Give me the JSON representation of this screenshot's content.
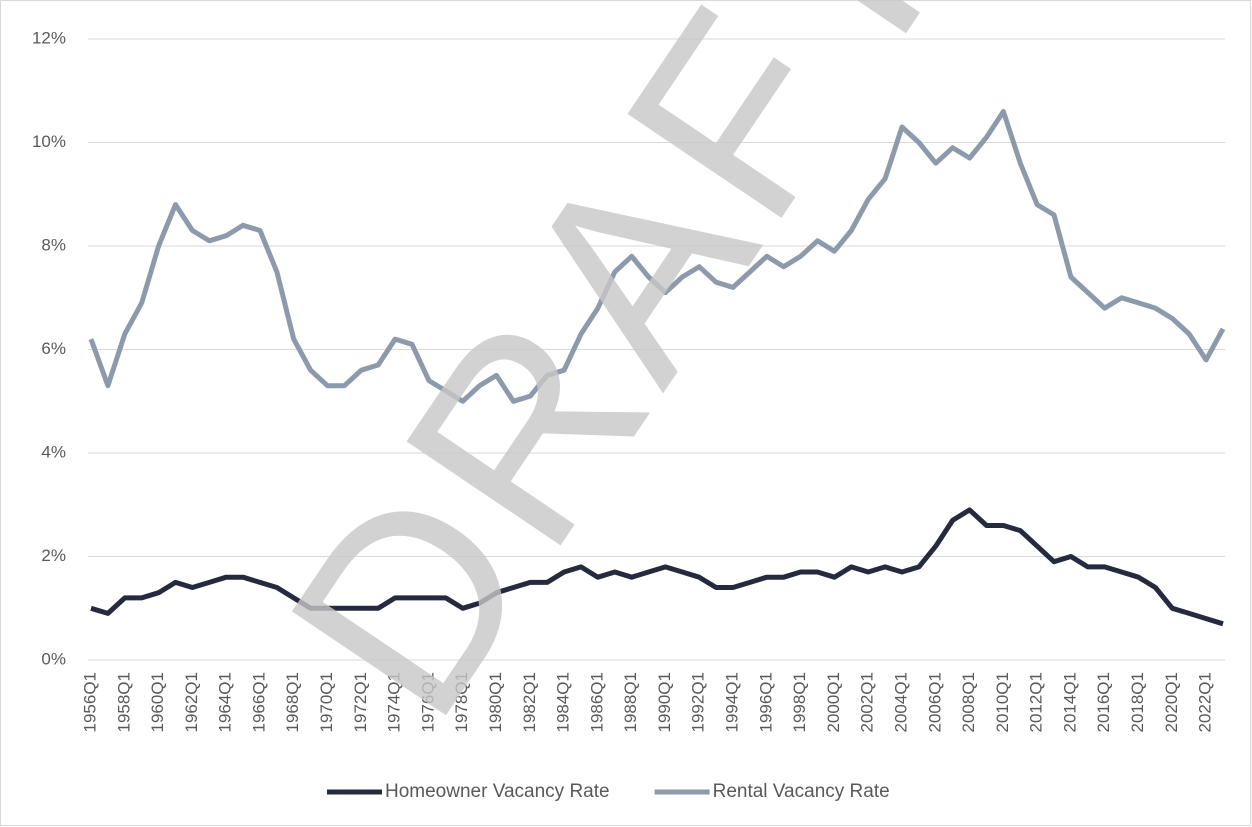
{
  "chart_data": {
    "type": "line",
    "watermark": "DRAFT",
    "categories": [
      "1956Q1",
      null,
      "1958Q1",
      null,
      "1960Q1",
      null,
      "1962Q1",
      null,
      "1964Q1",
      null,
      "1966Q1",
      null,
      "1968Q1",
      null,
      "1970Q1",
      null,
      "1972Q1",
      null,
      "1974Q1",
      null,
      "1976Q1",
      null,
      "1978Q1",
      null,
      "1980Q1",
      null,
      "1982Q1",
      null,
      "1984Q1",
      null,
      "1986Q1",
      null,
      "1988Q1",
      null,
      "1990Q1",
      null,
      "1992Q1",
      null,
      "1994Q1",
      null,
      "1996Q1",
      null,
      "1998Q1",
      null,
      "2000Q1",
      null,
      "2002Q1",
      null,
      "2004Q1",
      null,
      "2006Q1",
      null,
      "2008Q1",
      null,
      "2010Q1",
      null,
      "2012Q1",
      null,
      "2014Q1",
      null,
      "2016Q1",
      null,
      "2018Q1",
      null,
      "2020Q1",
      null,
      "2022Q1",
      null
    ],
    "series": [
      {
        "name": "Homeowner Vacancy Rate",
        "color": "#262a3f",
        "values": [
          1.0,
          0.9,
          1.2,
          1.2,
          1.3,
          1.5,
          1.4,
          1.5,
          1.6,
          1.6,
          1.5,
          1.4,
          1.2,
          1.0,
          1.0,
          1.0,
          1.0,
          1.0,
          1.2,
          1.2,
          1.2,
          1.2,
          1.0,
          1.1,
          1.3,
          1.4,
          1.5,
          1.5,
          1.7,
          1.8,
          1.6,
          1.7,
          1.6,
          1.7,
          1.8,
          1.7,
          1.6,
          1.4,
          1.4,
          1.5,
          1.6,
          1.6,
          1.7,
          1.7,
          1.6,
          1.8,
          1.7,
          1.8,
          1.7,
          1.8,
          2.2,
          2.7,
          2.9,
          2.6,
          2.6,
          2.5,
          2.2,
          1.9,
          2.0,
          1.8,
          1.8,
          1.7,
          1.6,
          1.4,
          1.0,
          0.9,
          0.8,
          0.7
        ]
      },
      {
        "name": "Rental Vacancy Rate",
        "color": "#8c9aab",
        "values": [
          6.2,
          5.3,
          6.3,
          6.9,
          8.0,
          8.8,
          8.3,
          8.1,
          8.2,
          8.4,
          8.3,
          7.5,
          6.2,
          5.6,
          5.3,
          5.3,
          5.6,
          5.7,
          6.2,
          6.1,
          5.4,
          5.2,
          5.0,
          5.3,
          5.5,
          5.0,
          5.1,
          5.5,
          5.6,
          6.3,
          6.8,
          7.5,
          7.8,
          7.4,
          7.1,
          7.4,
          7.6,
          7.3,
          7.2,
          7.5,
          7.8,
          7.6,
          7.8,
          8.1,
          7.9,
          8.3,
          8.9,
          9.3,
          10.3,
          10.0,
          9.6,
          9.9,
          9.7,
          10.1,
          10.6,
          9.6,
          8.8,
          8.6,
          7.4,
          7.1,
          6.8,
          7.0,
          6.9,
          6.8,
          6.6,
          6.3,
          5.8,
          6.4
        ]
      }
    ],
    "ylim": [
      0,
      12
    ],
    "yticks": [
      {
        "value": 0,
        "label": "0%"
      },
      {
        "value": 2,
        "label": "2%"
      },
      {
        "value": 4,
        "label": "4%"
      },
      {
        "value": 6,
        "label": "6%"
      },
      {
        "value": 8,
        "label": "8%"
      },
      {
        "value": 10,
        "label": "10%"
      },
      {
        "value": 12,
        "label": "12%"
      }
    ],
    "grid": true,
    "legend": "bottom"
  }
}
